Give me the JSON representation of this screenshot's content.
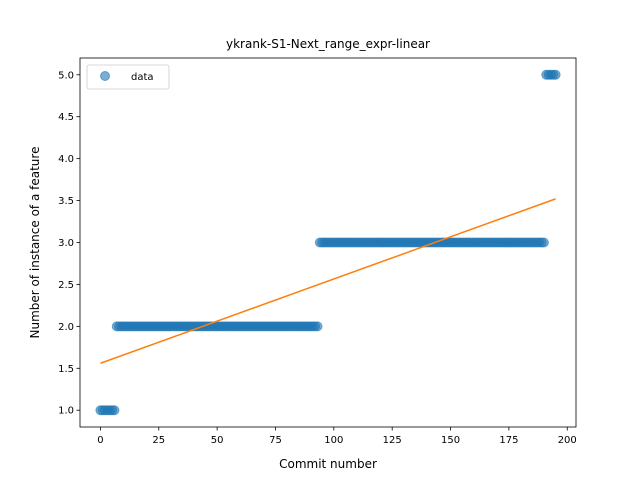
{
  "chart_data": {
    "type": "scatter",
    "title": "ykrank-S1-Next_range_expr-linear",
    "xlabel": "Commit number",
    "ylabel": "Number of instance of a feature",
    "xlim": [
      -8.75,
      203.75
    ],
    "ylim": [
      0.8,
      5.2
    ],
    "xticks": [
      0,
      25,
      50,
      75,
      100,
      125,
      150,
      175,
      200
    ],
    "yticks": [
      1.0,
      1.5,
      2.0,
      2.5,
      3.0,
      3.5,
      4.0,
      4.5,
      5.0
    ],
    "xtick_labels": [
      "0",
      "25",
      "50",
      "75",
      "100",
      "125",
      "150",
      "175",
      "200"
    ],
    "ytick_labels": [
      "1.0",
      "1.5",
      "2.0",
      "2.5",
      "3.0",
      "3.5",
      "4.0",
      "4.5",
      "5.0"
    ],
    "legend": {
      "position": "upper-left",
      "entries": [
        "data"
      ]
    },
    "series": [
      {
        "name": "data",
        "kind": "scatter",
        "color": "#1f77b4",
        "segments": [
          {
            "x_start": 0,
            "x_end": 6,
            "y": 1.0
          },
          {
            "x_start": 7,
            "x_end": 93,
            "y": 2.0
          },
          {
            "x_start": 94,
            "x_end": 190,
            "y": 3.0
          },
          {
            "x_start": 191,
            "x_end": 195,
            "y": 5.0
          }
        ]
      },
      {
        "name": "",
        "kind": "line",
        "color": "#ff7f0e",
        "points": [
          [
            0,
            1.56
          ],
          [
            195,
            3.52
          ]
        ]
      }
    ]
  }
}
